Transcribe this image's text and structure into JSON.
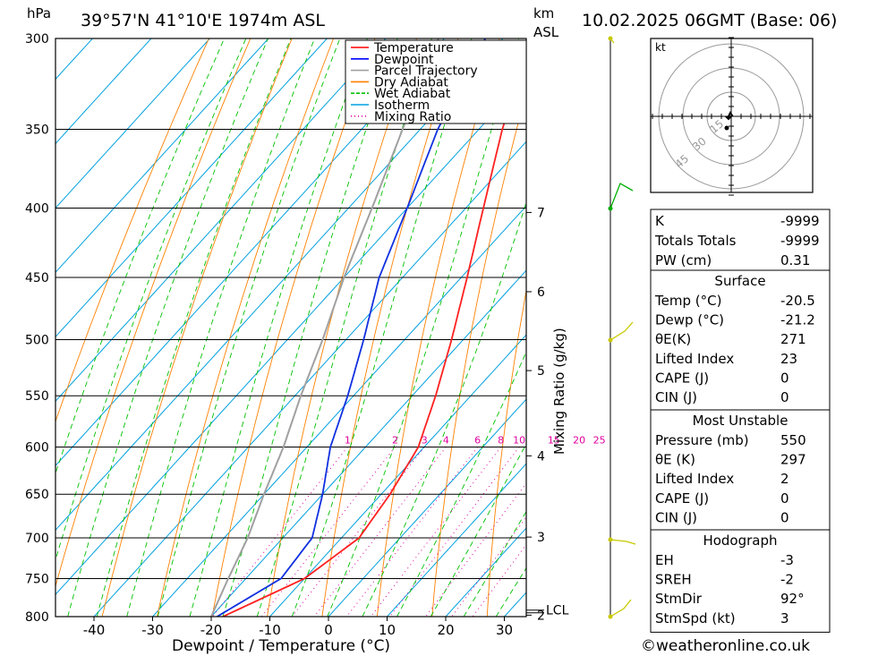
{
  "header": {
    "pressure_unit": "hPa",
    "location": "39°57'N 41°10'E 1974m ASL",
    "km_unit": "km",
    "asl": "ASL",
    "datetime": "10.02.2025 06GMT (Base: 06)"
  },
  "chart_data": {
    "type": "line",
    "xlabel": "Dewpoint / Temperature (°C)",
    "y_right_label": "Mixing Ratio (g/kg)",
    "pressure_levels": [
      300,
      350,
      400,
      450,
      500,
      550,
      600,
      650,
      700,
      750,
      800
    ],
    "x_ticks": [
      -40,
      -30,
      -20,
      -10,
      0,
      10,
      20,
      30
    ],
    "xlim": [
      -46,
      33
    ],
    "ylim": [
      800,
      300
    ],
    "km_ticks": [
      {
        "label": "7",
        "p": 403
      },
      {
        "label": "6",
        "p": 461
      },
      {
        "label": "5",
        "p": 527
      },
      {
        "label": "4",
        "p": 609
      },
      {
        "label": "3",
        "p": 699
      },
      {
        "label": "2",
        "p": 798
      }
    ],
    "lcl_label": "LCL",
    "lcl_p": 796,
    "mixing_ratio_labels": [
      "1",
      "2",
      "3",
      "4",
      "6",
      "8",
      "10",
      "15",
      "20",
      "25"
    ],
    "mixing_ratio_values": [
      1,
      2,
      3,
      4,
      6,
      8,
      10,
      15,
      20,
      25
    ],
    "legend": [
      {
        "name": "Temperature",
        "color": "#ff0000",
        "style": "solid"
      },
      {
        "name": "Dewpoint",
        "color": "#0000ff",
        "style": "solid"
      },
      {
        "name": "Parcel Trajectory",
        "color": "#a0a0a0",
        "style": "solid"
      },
      {
        "name": "Dry Adiabat",
        "color": "#ff8000",
        "style": "solid"
      },
      {
        "name": "Wet Adiabat",
        "color": "#00c000",
        "style": "dashed"
      },
      {
        "name": "Isotherm",
        "color": "#00a0e0",
        "style": "solid"
      },
      {
        "name": "Mixing Ratio",
        "color": "#e000a0",
        "style": "dotted"
      }
    ],
    "temperature": [
      [
        800,
        -18
      ],
      [
        750,
        -10
      ],
      [
        700,
        -7
      ],
      [
        650,
        -8.5
      ],
      [
        600,
        -11
      ],
      [
        550,
        -16
      ],
      [
        500,
        -22
      ],
      [
        450,
        -29
      ],
      [
        400,
        -37
      ],
      [
        350,
        -46
      ],
      [
        300,
        -55
      ]
    ],
    "dewpoint": [
      [
        800,
        -19
      ],
      [
        750,
        -14
      ],
      [
        700,
        -15
      ],
      [
        650,
        -20
      ],
      [
        600,
        -26
      ],
      [
        550,
        -31
      ],
      [
        500,
        -37
      ],
      [
        450,
        -44
      ],
      [
        400,
        -50
      ],
      [
        350,
        -57
      ],
      [
        300,
        -63
      ]
    ],
    "parcel": [
      [
        800,
        -20
      ],
      [
        750,
        -23
      ],
      [
        700,
        -26
      ],
      [
        650,
        -30
      ],
      [
        600,
        -34
      ],
      [
        550,
        -39
      ],
      [
        500,
        -44
      ],
      [
        450,
        -50
      ],
      [
        400,
        -56
      ],
      [
        350,
        -63
      ],
      [
        300,
        -71
      ]
    ]
  },
  "hodograph": {
    "unit": "kt",
    "rings": [
      "15",
      "30",
      "45"
    ]
  },
  "indices": {
    "top": [
      {
        "label": "K",
        "value": "-9999"
      },
      {
        "label": "Totals Totals",
        "value": "-9999"
      },
      {
        "label": "PW (cm)",
        "value": "0.31"
      }
    ],
    "surface": {
      "title": "Surface",
      "rows": [
        {
          "label": "Temp (°C)",
          "value": "-20.5"
        },
        {
          "label": "Dewp (°C)",
          "value": "-21.2"
        },
        {
          "label": "θE(K)",
          "value": "271"
        },
        {
          "label": "Lifted Index",
          "value": "23"
        },
        {
          "label": "CAPE (J)",
          "value": "0"
        },
        {
          "label": "CIN (J)",
          "value": "0"
        }
      ]
    },
    "most_unstable": {
      "title": "Most Unstable",
      "rows": [
        {
          "label": "Pressure (mb)",
          "value": "550"
        },
        {
          "label": "θE (K)",
          "value": "297"
        },
        {
          "label": "Lifted Index",
          "value": "2"
        },
        {
          "label": "CAPE (J)",
          "value": "0"
        },
        {
          "label": "CIN (J)",
          "value": "0"
        }
      ]
    },
    "hodo": {
      "title": "Hodograph",
      "rows": [
        {
          "label": "EH",
          "value": "-3"
        },
        {
          "label": "SREH",
          "value": "-2"
        },
        {
          "label": "StmDir",
          "value": "92°"
        },
        {
          "label": "StmSpd (kt)",
          "value": "3"
        }
      ]
    }
  },
  "footer": {
    "copyright": "©weatheronline.co.uk"
  }
}
